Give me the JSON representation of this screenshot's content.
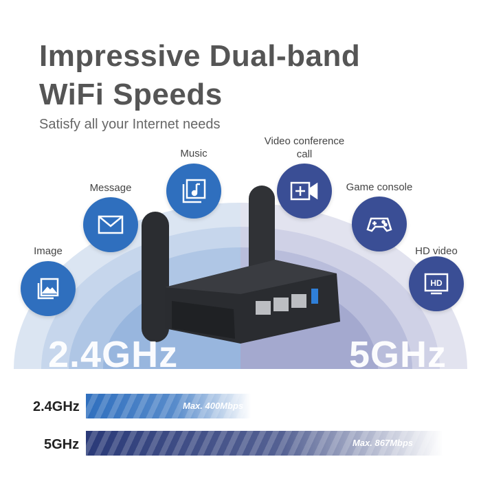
{
  "header": {
    "title_line1": "Impressive Dual-band",
    "title_line2": "WiFi Speeds",
    "subtitle": "Satisfy all your Internet needs"
  },
  "features": [
    {
      "label": "Image",
      "icon": "image-icon",
      "color": "#2f6fbe"
    },
    {
      "label": "Message",
      "icon": "mail-icon",
      "color": "#2f6fbe"
    },
    {
      "label": "Music",
      "icon": "music-icon",
      "color": "#2f6fbe"
    },
    {
      "label": "Video conference call",
      "icon": "video-call-icon",
      "color": "#3a4e95"
    },
    {
      "label": "Game console",
      "icon": "gamepad-icon",
      "color": "#3a4e95"
    },
    {
      "label": "HD video",
      "icon": "hd-tv-icon",
      "color": "#3a4e95"
    }
  ],
  "bands": {
    "left": "2.4GHz",
    "right": "5GHz"
  },
  "speeds": [
    {
      "band": "2.4GHz",
      "label": "Max. 400Mbps",
      "mbps": 400,
      "color": "#2f6fbe"
    },
    {
      "band": "5GHz",
      "label": "Max. 867Mbps",
      "mbps": 867,
      "color": "#2a3a78"
    }
  ]
}
